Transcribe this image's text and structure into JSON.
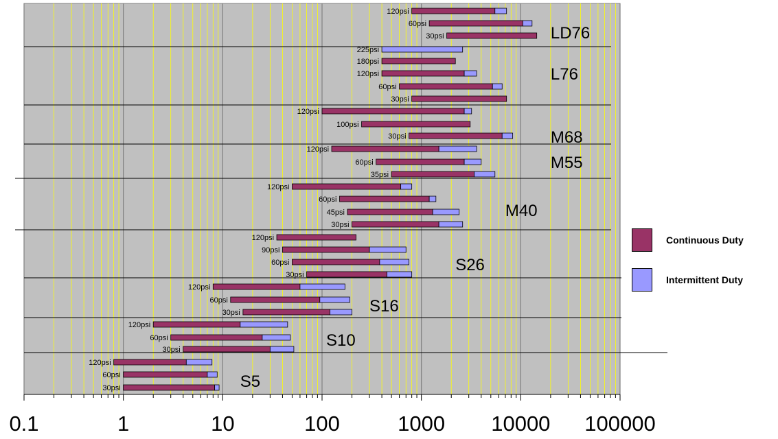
{
  "chart_data": {
    "type": "bar",
    "orientation": "horizontal",
    "stacked": true,
    "x_scale": "log",
    "xlim": [
      0.1,
      100000
    ],
    "x_ticks": [
      "0.1",
      "1",
      "10",
      "100",
      "1000",
      "10000",
      "100000"
    ],
    "colors": {
      "continuous": "#993366",
      "intermittent": "#9999ff",
      "plot_background": "#c0c0c0",
      "minor_grid": "#ffff00",
      "major_grid": "#808080"
    },
    "legend_position": "right",
    "series": [
      {
        "name": "Continuous Duty",
        "color_key": "continuous"
      },
      {
        "name": "Intermittent Duty",
        "color_key": "intermittent"
      }
    ],
    "groups": [
      {
        "label": "LD76",
        "label_x": 20000,
        "bars": [
          {
            "label": "120psi",
            "start": 800,
            "continuous_end": 5500,
            "intermittent_end": 7200
          },
          {
            "label": "60psi",
            "start": 1200,
            "continuous_end": 10500,
            "intermittent_end": 13000
          },
          {
            "label": "30psi",
            "start": 1800,
            "continuous_end": 14500,
            "intermittent_end": 14500
          }
        ]
      },
      {
        "label": "L76",
        "label_x": 20000,
        "bars": [
          {
            "label": "225psi",
            "start": 400,
            "continuous_end": 400,
            "intermittent_end": 2600
          },
          {
            "label": "180psi",
            "start": 400,
            "continuous_end": 2200,
            "intermittent_end": 2200
          },
          {
            "label": "120psi",
            "start": 400,
            "continuous_end": 2700,
            "intermittent_end": 3600
          },
          {
            "label": "60psi",
            "start": 600,
            "continuous_end": 5200,
            "intermittent_end": 6500
          },
          {
            "label": "30psi",
            "start": 800,
            "continuous_end": 7200,
            "intermittent_end": 7200
          }
        ]
      },
      {
        "label": "M68",
        "label_x": 20000,
        "bars": [
          {
            "label": "120psi",
            "start": 100,
            "continuous_end": 2700,
            "intermittent_end": 3200
          },
          {
            "label": "100psi",
            "start": 250,
            "continuous_end": 3100,
            "intermittent_end": 3100
          },
          {
            "label": "30psi",
            "start": 750,
            "continuous_end": 6500,
            "intermittent_end": 8300
          }
        ]
      },
      {
        "label": "M55",
        "label_x": 20000,
        "bars": [
          {
            "label": "120psi",
            "start": 125,
            "continuous_end": 1500,
            "intermittent_end": 3600
          },
          {
            "label": "60psi",
            "start": 350,
            "continuous_end": 2700,
            "intermittent_end": 4000
          },
          {
            "label": "35psi",
            "start": 500,
            "continuous_end": 3400,
            "intermittent_end": 5500
          }
        ]
      },
      {
        "label": "M40",
        "label_x": 7000,
        "bars": [
          {
            "label": "120psi",
            "start": 50,
            "continuous_end": 620,
            "intermittent_end": 800
          },
          {
            "label": "60psi",
            "start": 150,
            "continuous_end": 1200,
            "intermittent_end": 1400
          },
          {
            "label": "45psi",
            "start": 180,
            "continuous_end": 1300,
            "intermittent_end": 2400
          },
          {
            "label": "30psi",
            "start": 200,
            "continuous_end": 1500,
            "intermittent_end": 2600
          }
        ]
      },
      {
        "label": "S26",
        "label_x": 2200,
        "bars": [
          {
            "label": "120psi",
            "start": 35,
            "continuous_end": 220,
            "intermittent_end": 220
          },
          {
            "label": "90psi",
            "start": 40,
            "continuous_end": 300,
            "intermittent_end": 700
          },
          {
            "label": "60psi",
            "start": 50,
            "continuous_end": 380,
            "intermittent_end": 750
          },
          {
            "label": "30psi",
            "start": 70,
            "continuous_end": 450,
            "intermittent_end": 800
          }
        ]
      },
      {
        "label": "S16",
        "label_x": 300,
        "bars": [
          {
            "label": "120psi",
            "start": 8,
            "continuous_end": 60,
            "intermittent_end": 170
          },
          {
            "label": "60psi",
            "start": 12,
            "continuous_end": 95,
            "intermittent_end": 190
          },
          {
            "label": "30psi",
            "start": 16,
            "continuous_end": 120,
            "intermittent_end": 200
          }
        ]
      },
      {
        "label": "S10",
        "label_x": 110,
        "bars": [
          {
            "label": "120psi",
            "start": 2,
            "continuous_end": 15,
            "intermittent_end": 45
          },
          {
            "label": "60psi",
            "start": 3,
            "continuous_end": 25,
            "intermittent_end": 48
          },
          {
            "label": "30psi",
            "start": 4,
            "continuous_end": 30,
            "intermittent_end": 52
          }
        ]
      },
      {
        "label": "S5",
        "label_x": 15,
        "bars": [
          {
            "label": "120psi",
            "start": 0.8,
            "continuous_end": 4.3,
            "intermittent_end": 7.8
          },
          {
            "label": "60psi",
            "start": 1,
            "continuous_end": 7,
            "intermittent_end": 8.8
          },
          {
            "label": "30psi",
            "start": 1,
            "continuous_end": 8.3,
            "intermittent_end": 9.2
          }
        ]
      }
    ]
  }
}
